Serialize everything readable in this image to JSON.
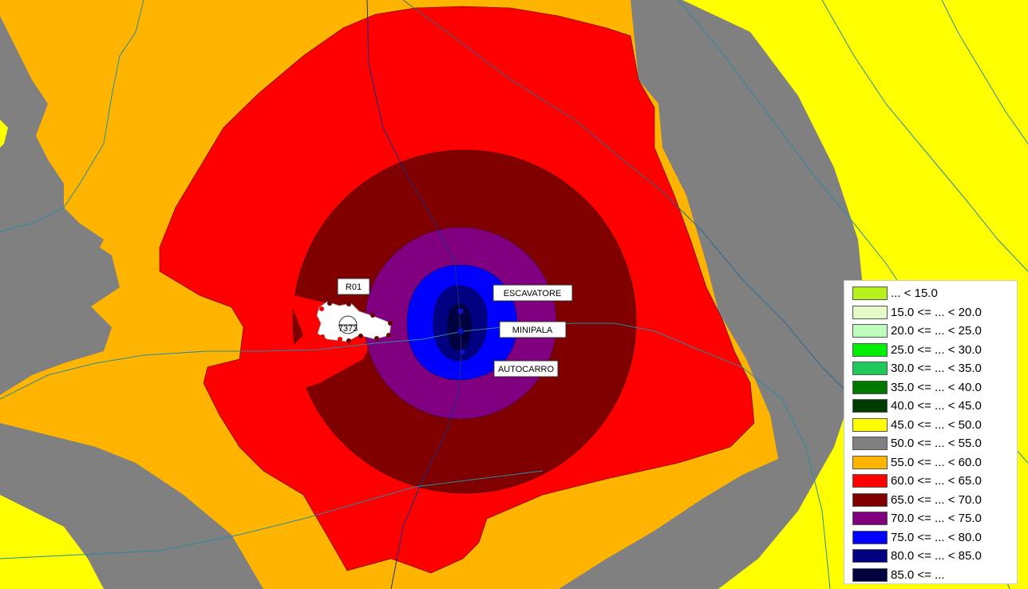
{
  "map_labels": {
    "receiver": "R01",
    "building_id": "7373",
    "source_1": "ESCAVATORE",
    "source_2": "MINIPALA",
    "source_3": "AUTOCARRO"
  },
  "legend": {
    "items": [
      {
        "label": "... < 15.0",
        "color": "#b8f01e"
      },
      {
        "label": "15.0 <= ... < 20.0",
        "color": "#e6f9c8"
      },
      {
        "label": "20.0 <= ... < 25.0",
        "color": "#bdfdbd"
      },
      {
        "label": "25.0 <= ... < 30.0",
        "color": "#00ee00"
      },
      {
        "label": "30.0 <= ... < 35.0",
        "color": "#1ec85a"
      },
      {
        "label": "35.0 <= ... < 40.0",
        "color": "#007800"
      },
      {
        "label": "40.0 <= ... < 45.0",
        "color": "#003c00"
      },
      {
        "label": "45.0 <= ... < 50.0",
        "color": "#ffff00"
      },
      {
        "label": "50.0 <= ... < 55.0",
        "color": "#808080"
      },
      {
        "label": "55.0 <= ... < 60.0",
        "color": "#ffb400"
      },
      {
        "label": "60.0 <= ... < 65.0",
        "color": "#ff0000"
      },
      {
        "label": "65.0 <= ... < 70.0",
        "color": "#800000"
      },
      {
        "label": "70.0 <= ... < 75.0",
        "color": "#800080"
      },
      {
        "label": "75.0 <= ... < 80.0",
        "color": "#0000ff"
      },
      {
        "label": "80.0 <= ... < 85.0",
        "color": "#000080"
      },
      {
        "label": "85.0 <= ...",
        "color": "#000040"
      }
    ]
  }
}
